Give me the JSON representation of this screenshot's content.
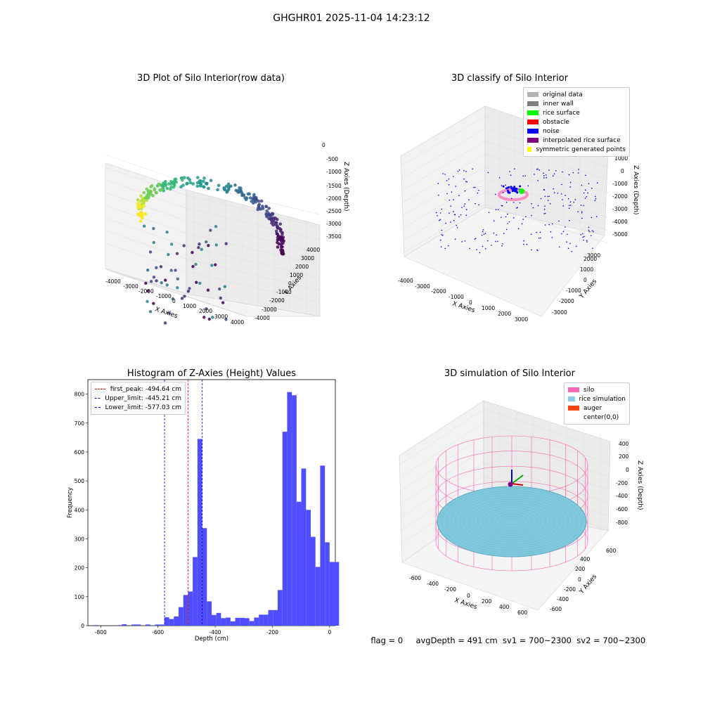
{
  "suptitle": "GHGHR01 2025-11-04 14:23:12",
  "panels": {
    "raw": {
      "title": "3D Plot of Silo Interior(row data)",
      "xlabel": "X Axies",
      "ylabel": "Y Axies",
      "zlabel": "Z Axies (Depth)",
      "xticks": [
        "-4000",
        "-3000",
        "-2000",
        "-1000",
        "0",
        "1000",
        "2000",
        "3000",
        "4000"
      ],
      "yticks": [
        "-4000",
        "-3000",
        "-2000",
        "-1000",
        "0",
        "1000",
        "2000",
        "3000",
        "4000"
      ],
      "zticks": [
        "0",
        "-500",
        "-1000",
        "-1500",
        "-2000",
        "-2500",
        "-3000",
        "-3500"
      ]
    },
    "classify": {
      "title": "3D classify of Silo Interior",
      "xlabel": "X Axies",
      "ylabel": "Y Axies",
      "zlabel": "Z Axies (Depth)",
      "xticks": [
        "-4000",
        "-3000",
        "-2000",
        "-1000",
        "0",
        "1000",
        "2000",
        "3000"
      ],
      "yticks": [
        "-3000",
        "-2000",
        "-1000",
        "0",
        "1000",
        "2000",
        "3000"
      ],
      "zticks": [
        "2000",
        "1000",
        "0",
        "-1000",
        "-2000",
        "-3000",
        "-4000",
        "-5000"
      ],
      "legend": [
        {
          "label": "original data",
          "color": "#b3b3b3"
        },
        {
          "label": "inner wall",
          "color": "#808080"
        },
        {
          "label": "rice surface",
          "color": "#00ff00"
        },
        {
          "label": "obstacle",
          "color": "#ff0000"
        },
        {
          "label": "noise",
          "color": "#0000ff"
        },
        {
          "label": "interpolated rice surface",
          "color": "#800080"
        },
        {
          "label": "symmetric generated points",
          "color": "#ffff00"
        }
      ]
    },
    "simulation": {
      "title": "3D simulation of Silo Interior",
      "xlabel": "X Axies",
      "ylabel": "Y Axies",
      "zlabel": "Z Axies (Depth)",
      "xticks": [
        "-600",
        "-400",
        "-200",
        "0",
        "200",
        "400",
        "600"
      ],
      "yticks": [
        "-600",
        "-400",
        "-200",
        "0",
        "200",
        "400",
        "600"
      ],
      "zticks": [
        "400",
        "200",
        "0",
        "-200",
        "-400",
        "-600",
        "-800"
      ],
      "legend": [
        {
          "label": "silo",
          "color": "#ff69b4"
        },
        {
          "label": "rice simulation",
          "color": "#87ceeb"
        },
        {
          "label": "auger",
          "color": "#ff4500"
        },
        {
          "label": "center(0,0)",
          "color": ""
        }
      ]
    }
  },
  "chart_data": [
    {
      "type": "bar",
      "title": "Histogram of Z-Axies (Height) Values",
      "xlabel": "Depth (cm)",
      "ylabel": "Frequency",
      "xlim": [
        -845,
        20
      ],
      "ylim": [
        0,
        850
      ],
      "xticks": [
        -800,
        -600,
        -400,
        -200,
        0
      ],
      "yticks": [
        0,
        100,
        200,
        300,
        400,
        500,
        600,
        700,
        800
      ],
      "bin_width": 16.5,
      "bin_start": -825,
      "color": "#4f4fff",
      "values": [
        2,
        0,
        0,
        0,
        0,
        2,
        5,
        0,
        4,
        4,
        0,
        4,
        0,
        4,
        4,
        29,
        23,
        32,
        64,
        106,
        118,
        237,
        645,
        337,
        84,
        37,
        44,
        26,
        28,
        15,
        27,
        27,
        26,
        16,
        28,
        38,
        38,
        54,
        54,
        123,
        670,
        807,
        796,
        428,
        543,
        400,
        307,
        203,
        553,
        288,
        220,
        220
      ],
      "reference_lines": [
        {
          "label": "first_peak: -494.64 cm",
          "x": -494.64,
          "color": "#ff0000"
        },
        {
          "label": "Upper_limit: -445.21 cm",
          "x": -445.21,
          "color": "#0000cc"
        },
        {
          "label": "Lower_limit: -577.03 cm",
          "x": -577.03,
          "color": "#0000cc"
        }
      ],
      "legend_position": "upper-left"
    }
  ],
  "footer": {
    "flag": "flag = 0",
    "avg": "avgDepth = 491 cm",
    "sv1": "sv1 = 700~2300",
    "sv2": "sv2 = 700~2300"
  }
}
